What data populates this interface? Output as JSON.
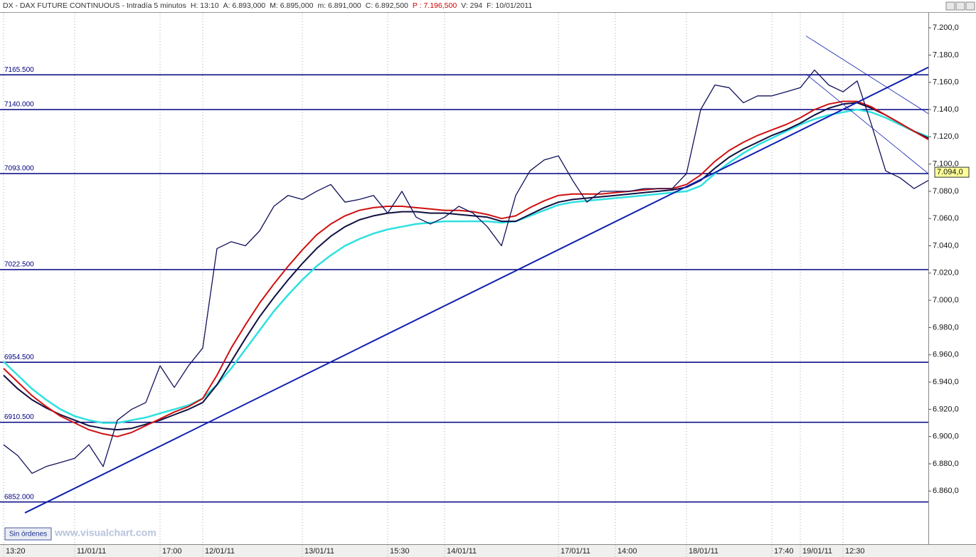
{
  "header": {
    "items": [
      "DX - DAX FUTURE CONTINUOUS - Intradía 5 minutos",
      "H: 13:10",
      "A: 6.893,000",
      "M: 6.895,000",
      "m: 6.891,000",
      "C: 6.892,500",
      "P : 7.196,500",
      "V: 294",
      "F: 10/01/2011"
    ]
  },
  "footer": {
    "button": "Sin órdenes",
    "watermark": "www.visualchart.com"
  },
  "chart_data": {
    "type": "line",
    "categories": [
      "13:20",
      null,
      null,
      null,
      null,
      "11/01/11",
      null,
      null,
      null,
      null,
      null,
      "17:00",
      null,
      null,
      "12/01/11",
      null,
      null,
      null,
      null,
      null,
      null,
      "13/01/11",
      null,
      null,
      null,
      null,
      null,
      "15:30",
      null,
      null,
      null,
      "14/01/11",
      null,
      null,
      null,
      null,
      null,
      null,
      null,
      "17/01/11",
      null,
      null,
      null,
      "14:00",
      null,
      null,
      null,
      null,
      "18/01/11",
      null,
      null,
      null,
      null,
      null,
      "17:40",
      null,
      "19/01/11",
      null,
      null,
      "12:30",
      null,
      null,
      null,
      null,
      null,
      null
    ],
    "series": [
      {
        "name": "Price",
        "color": "#10105a",
        "width": 1.3,
        "values": [
          6894,
          6886,
          6873,
          6878,
          6881,
          6884,
          6894,
          6878,
          6912,
          6920,
          6925,
          6952,
          6936,
          6952,
          6965,
          7038,
          7043,
          7040,
          7051,
          7069,
          7077,
          7074,
          7080,
          7085,
          7072,
          7074,
          7077,
          7064,
          7080,
          7061,
          7056,
          7061,
          7069,
          7064,
          7054,
          7040,
          7077,
          7095,
          7103,
          7106,
          7088,
          7072,
          7080,
          7080,
          7080,
          7082,
          7082,
          7082,
          7093,
          7140,
          7158,
          7156,
          7145,
          7150,
          7150,
          7153,
          7156,
          7169,
          7158,
          7153,
          7161,
          7129,
          7095,
          7090,
          7082,
          7088
        ]
      },
      {
        "name": "MA red",
        "color": "#d01010",
        "width": 2,
        "values": [
          6950,
          6940,
          6930,
          6922,
          6915,
          6910,
          6905,
          6902,
          6900,
          6903,
          6908,
          6913,
          6918,
          6922,
          6928,
          6945,
          6965,
          6982,
          6998,
          7012,
          7025,
          7037,
          7048,
          7056,
          7062,
          7066,
          7068,
          7069,
          7069,
          7068,
          7067,
          7066,
          7066,
          7065,
          7063,
          7060,
          7062,
          7068,
          7073,
          7077,
          7078,
          7078,
          7078,
          7079,
          7080,
          7081,
          7082,
          7082,
          7085,
          7092,
          7102,
          7110,
          7116,
          7121,
          7125,
          7129,
          7134,
          7140,
          7144,
          7146,
          7146,
          7142,
          7136,
          7130,
          7124,
          7118
        ]
      },
      {
        "name": "MA navy",
        "color": "#101040",
        "width": 2,
        "values": [
          6945,
          6935,
          6927,
          6921,
          6916,
          6912,
          6908,
          6906,
          6905,
          6906,
          6909,
          6912,
          6916,
          6920,
          6925,
          6938,
          6955,
          6972,
          6988,
          7002,
          7015,
          7027,
          7038,
          7047,
          7054,
          7059,
          7062,
          7064,
          7065,
          7065,
          7064,
          7064,
          7063,
          7062,
          7061,
          7058,
          7058,
          7063,
          7068,
          7072,
          7074,
          7075,
          7076,
          7077,
          7078,
          7079,
          7080,
          7081,
          7083,
          7088,
          7097,
          7105,
          7111,
          7116,
          7121,
          7125,
          7130,
          7136,
          7141,
          7144,
          7145,
          7141,
          7136,
          7130,
          7124,
          7119
        ]
      },
      {
        "name": "MA cyan",
        "color": "#30e0e0",
        "width": 2.5,
        "values": [
          6955,
          6945,
          6935,
          6927,
          6920,
          6915,
          6912,
          6910,
          6910,
          6912,
          6914,
          6917,
          6920,
          6923,
          6928,
          6938,
          6950,
          6964,
          6978,
          6992,
          7004,
          7015,
          7025,
          7033,
          7040,
          7045,
          7049,
          7052,
          7054,
          7056,
          7057,
          7058,
          7058,
          7058,
          7058,
          7057,
          7058,
          7062,
          7066,
          7070,
          7072,
          7073,
          7074,
          7075,
          7076,
          7077,
          7078,
          7079,
          7080,
          7084,
          7093,
          7101,
          7108,
          7114,
          7119,
          7124,
          7129,
          7133,
          7136,
          7138,
          7140,
          7138,
          7134,
          7129,
          7124,
          7120
        ]
      }
    ],
    "levels": [
      {
        "value": 7165.5,
        "label": "7165.500"
      },
      {
        "value": 7140,
        "label": "7140.000"
      },
      {
        "value": 7093,
        "label": "7093.000"
      },
      {
        "value": 7022.5,
        "label": "7022.500"
      },
      {
        "value": 6954.5,
        "label": "6954.500"
      },
      {
        "value": 6910.5,
        "label": "6910.500"
      },
      {
        "value": 6852,
        "label": "6852.000"
      }
    ],
    "level_color": "#000080",
    "trendlines": [
      {
        "x": [
          1.5,
          65
        ],
        "values": [
          6844,
          7171
        ],
        "color": "#1020b0",
        "width": 2
      },
      {
        "x": [
          56.4,
          65
        ],
        "values": [
          7194,
          7137
        ],
        "color": "#1020b0",
        "width": 0.8
      },
      {
        "x": [
          56.4,
          65
        ],
        "values": [
          7166,
          7093
        ],
        "color": "#1020b0",
        "width": 0.8
      }
    ],
    "last_price": {
      "value": 7094,
      "label": "7.094,0"
    },
    "ylim": [
      6821,
      7211
    ],
    "yticks": [
      {
        "value": 6860,
        "label": "6.860,0"
      },
      {
        "value": 6880,
        "label": "6.880,0"
      },
      {
        "value": 6900,
        "label": "6.900,0"
      },
      {
        "value": 6920,
        "label": "6.920,0"
      },
      {
        "value": 6940,
        "label": "6.940,0"
      },
      {
        "value": 6960,
        "label": "6.960,0"
      },
      {
        "value": 6980,
        "label": "6.980,0"
      },
      {
        "value": 7000,
        "label": "7.000,0"
      },
      {
        "value": 7020,
        "label": "7.020,0"
      },
      {
        "value": 7040,
        "label": "7.040,0"
      },
      {
        "value": 7060,
        "label": "7.060,0"
      },
      {
        "value": 7080,
        "label": "7.080,0"
      },
      {
        "value": 7100,
        "label": "7.100,0"
      },
      {
        "value": 7120,
        "label": "7.120,0"
      },
      {
        "value": 7140,
        "label": "7.140,0"
      },
      {
        "value": 7160,
        "label": "7.160,0"
      },
      {
        "value": 7180,
        "label": "7.180,0"
      },
      {
        "value": 7200,
        "label": "7.200,0"
      }
    ]
  }
}
